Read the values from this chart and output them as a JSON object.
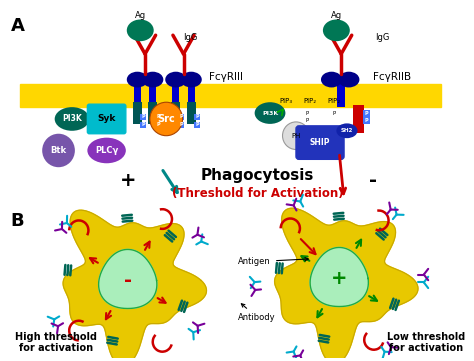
{
  "bg_color": "#ffffff",
  "membrane_color": "#FFD700",
  "panel_A_label": "A",
  "panel_B_label": "B",
  "fcgr3_label": "FcγRIII",
  "fcgr2b_label": "FcγRIIB",
  "ag_label": "Ag",
  "igg_label": "IgG",
  "phagocytosis_label": "Phagocytosis",
  "threshold_label": "(Threshold for Activation)",
  "plus_label": "+",
  "minus_label": "-",
  "antigen_label": "Antigen",
  "antibody_label": "Antibody",
  "high_thresh_label": "High threshold\nfor activation",
  "low_thresh_label": "Low threshold\nfor activation",
  "colors": {
    "red": "#CC0000",
    "blue": "#0000CC",
    "navy": "#000088",
    "teal": "#006666",
    "dark_teal": "#005555",
    "green": "#008800",
    "dark_green": "#006600",
    "orange": "#FF6600",
    "cyan": "#00CCCC",
    "purple": "#660099",
    "light_purple": "#8800AA",
    "yellow": "#FFD700",
    "light_green": "#90EE90",
    "PI3K_color": "#006655",
    "Syk_color": "#00BBCC",
    "Btk_color": "#7755AA",
    "PLCg_color": "#8833BB",
    "Src_color": "#FF8800",
    "PH_color": "#E0E0E0",
    "SHIP_color": "#2233BB",
    "SH2_color": "#1122AA"
  }
}
